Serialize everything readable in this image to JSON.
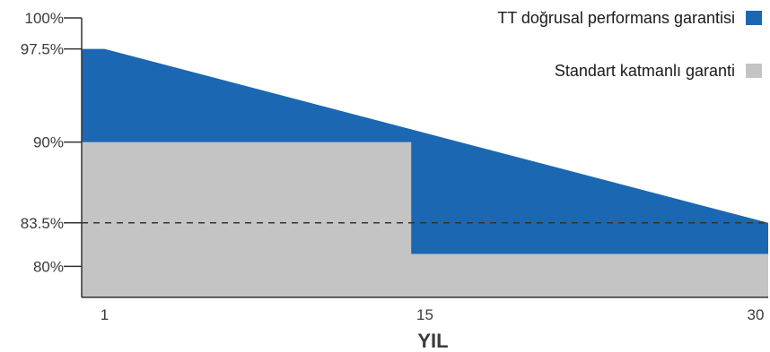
{
  "chart_data": {
    "type": "area",
    "xlabel": "YIL",
    "ylabel": "",
    "xlim": [
      0,
      30
    ],
    "ylim": [
      77.5,
      100
    ],
    "x_ticks": [
      {
        "value": 1,
        "label": "1"
      },
      {
        "value": 15,
        "label": "15"
      },
      {
        "value": 30,
        "label": "30"
      }
    ],
    "y_ticks": [
      {
        "value": 100,
        "label": "100%"
      },
      {
        "value": 97.5,
        "label": "97.5%"
      },
      {
        "value": 90,
        "label": "90%"
      },
      {
        "value": 83.5,
        "label": "83.5%"
      },
      {
        "value": 80,
        "label": "80%"
      }
    ],
    "reference_line": {
      "y": 83.5,
      "style": "dashed"
    },
    "legend_position": "top-right",
    "series": [
      {
        "name": "TT doğrusal performans garantisi",
        "color": "#1b67b2",
        "points": [
          [
            0,
            97.5
          ],
          [
            1,
            97.5
          ],
          [
            30,
            83.5
          ]
        ]
      },
      {
        "name": "Standart katmanlı garanti",
        "color": "#c4c4c4",
        "points": [
          [
            0,
            90
          ],
          [
            14.4,
            90
          ],
          [
            14.4,
            81
          ],
          [
            30,
            81
          ]
        ]
      }
    ]
  }
}
